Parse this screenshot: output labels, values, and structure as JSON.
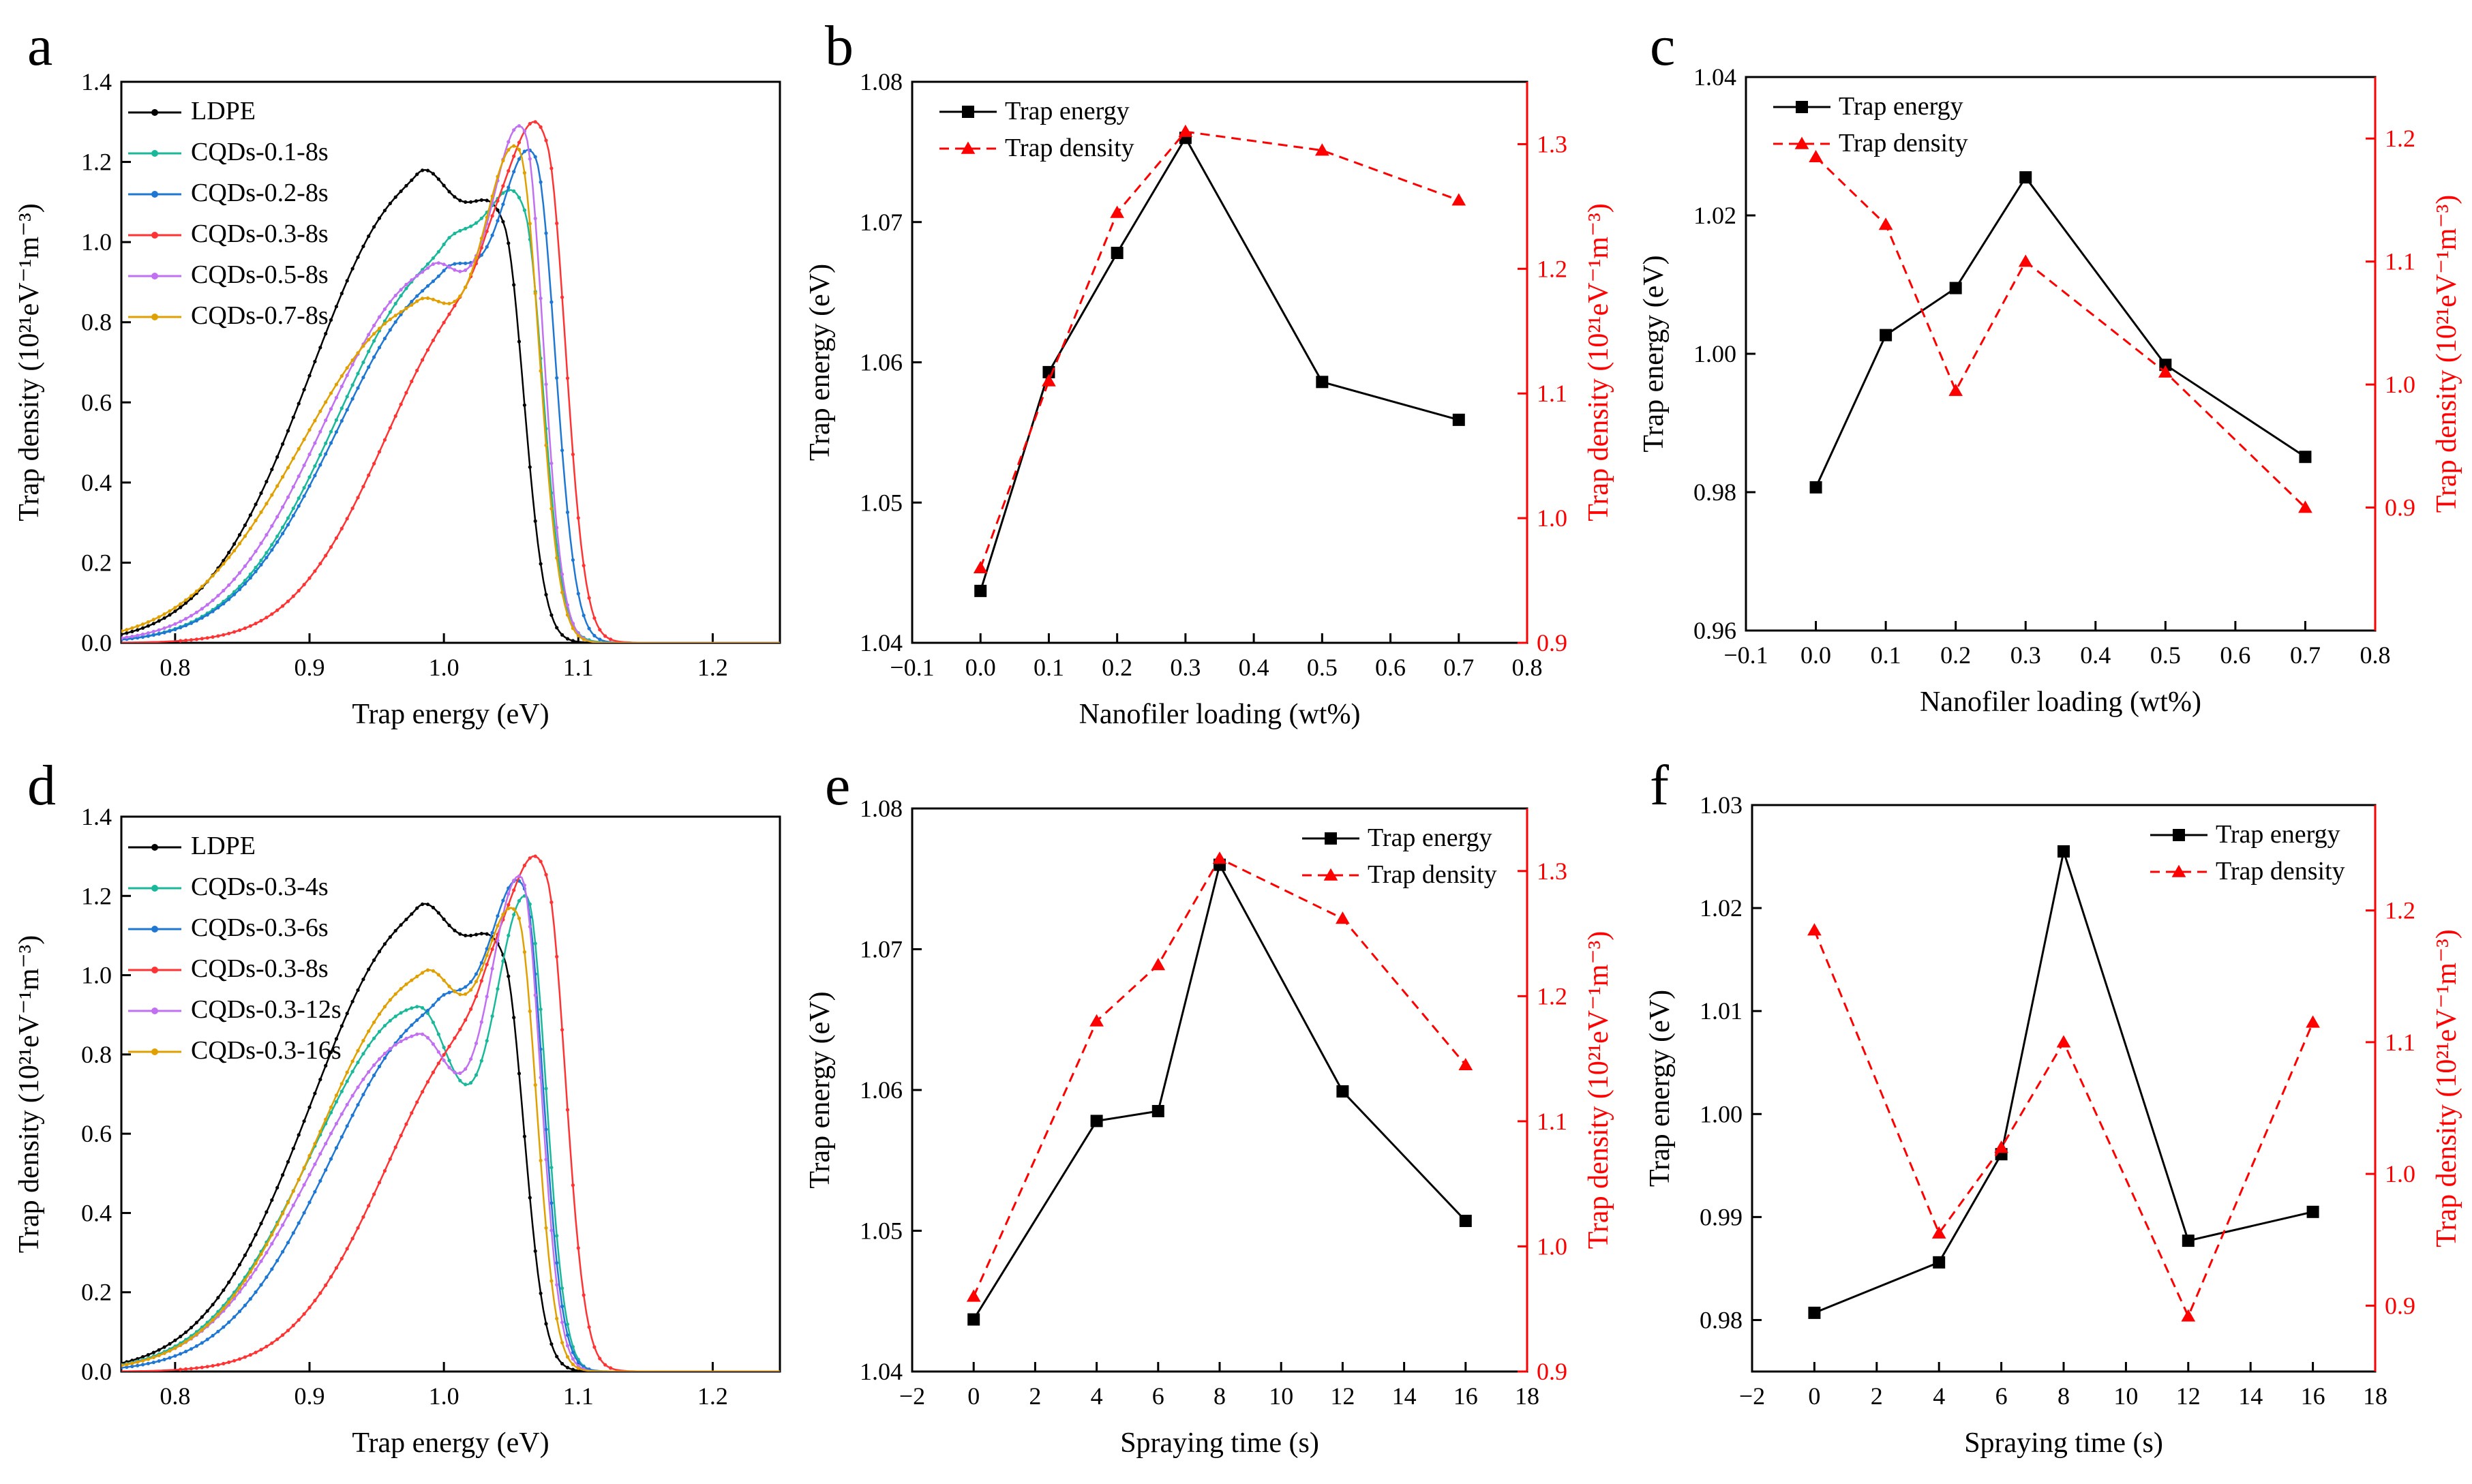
{
  "figure": {
    "panels": [
      "a",
      "b",
      "c",
      "d",
      "e",
      "f"
    ]
  },
  "colors": {
    "black": "#000000",
    "red": "#ff0000",
    "series_ldpe": "#000000",
    "series_teal": "#1ab89a",
    "series_blue": "#1f77d4",
    "series_red": "#ff3333",
    "series_violet": "#c070f0",
    "series_orange": "#e0a000"
  },
  "chart_data": [
    {
      "panel": "a",
      "type": "line",
      "xlabel": "Trap energy (eV)",
      "ylabel": "Trap density (10²¹eV⁻¹m⁻³)",
      "xlim": [
        0.76,
        1.25
      ],
      "ylim": [
        0,
        1.4
      ],
      "xticks": [
        "0.8",
        "0.9",
        "1.0",
        "1.1",
        "1.2"
      ],
      "yticks": [
        "0.0",
        "0.2",
        "0.4",
        "0.6",
        "0.8",
        "1.0",
        "1.2",
        "1.4"
      ],
      "legend": "top-left",
      "series": [
        {
          "name": "LDPE",
          "color": "series_ldpe",
          "peaks": [
            {
              "mu": 0.98,
              "h": 1.18,
              "s": 0.033
            },
            {
              "mu": 1.045,
              "h": 0.92,
              "s": 0.015
            }
          ],
          "tail": 0.045
        },
        {
          "name": "CQDs-0.1-8s",
          "color": "series_teal",
          "peaks": [
            {
              "mu": 1.0,
              "h": 1.13,
              "s": 0.033
            },
            {
              "mu": 1.06,
              "h": 1.08,
              "s": 0.014
            }
          ],
          "tail": 0.045
        },
        {
          "name": "CQDs-0.2-8s",
          "color": "series_blue",
          "peaks": [
            {
              "mu": 1.0,
              "h": 0.99,
              "s": 0.033
            },
            {
              "mu": 1.068,
              "h": 1.23,
              "s": 0.015
            }
          ],
          "tail": 0.045
        },
        {
          "name": "CQDs-0.3-8s",
          "color": "series_red",
          "peaks": [
            {
              "mu": 1.028,
              "h": 1.1,
              "s": 0.03
            },
            {
              "mu": 1.077,
              "h": 1.3,
              "s": 0.014
            }
          ],
          "tail": 0.04
        },
        {
          "name": "CQDs-0.5-8s",
          "color": "series_violet",
          "peaks": [
            {
              "mu": 0.99,
              "h": 1.0,
              "s": 0.033
            },
            {
              "mu": 1.06,
              "h": 1.29,
              "s": 0.014
            }
          ],
          "tail": 0.045
        },
        {
          "name": "CQDs-0.7-8s",
          "color": "series_orange",
          "peaks": [
            {
              "mu": 0.98,
              "h": 0.89,
              "s": 0.035
            },
            {
              "mu": 1.056,
              "h": 1.24,
              "s": 0.015
            }
          ],
          "tail": 0.05
        }
      ]
    },
    {
      "panel": "b",
      "type": "line",
      "xlabel": "Nanofiler loading (wt%)",
      "ylabel": "Trap energy (eV)",
      "ylabel_right": "Trap density (10²¹eV⁻¹m⁻³)",
      "xlim": [
        -0.1,
        0.8
      ],
      "ylim": [
        1.04,
        1.08
      ],
      "ylim_right": [
        0.9,
        1.35
      ],
      "xticks": [
        "−0.1",
        "0.0",
        "0.1",
        "0.2",
        "0.3",
        "0.4",
        "0.5",
        "0.6",
        "0.7",
        "0.8"
      ],
      "yticks": [
        "1.04",
        "1.05",
        "1.06",
        "1.07",
        "1.08"
      ],
      "yticks_right": [
        "0.9",
        "1.0",
        "1.1",
        "1.2",
        "1.3"
      ],
      "legend": "top-left",
      "x": [
        0.0,
        0.1,
        0.2,
        0.3,
        0.5,
        0.7
      ],
      "series": [
        {
          "name": "Trap energy",
          "axis": "left",
          "values": [
            1.0437,
            1.0593,
            1.0678,
            1.076,
            1.0586,
            1.0559
          ]
        },
        {
          "name": "Trap density",
          "axis": "right",
          "values": [
            0.96,
            1.11,
            1.245,
            1.31,
            1.295,
            1.255
          ]
        }
      ]
    },
    {
      "panel": "c",
      "type": "line",
      "xlabel": "Nanofiler loading (wt%)",
      "ylabel": "Trap energy (eV)",
      "ylabel_right": "Trap density (10²¹eV⁻¹m⁻³)",
      "xlim": [
        -0.1,
        0.8
      ],
      "ylim": [
        0.96,
        1.04
      ],
      "ylim_right": [
        0.8,
        1.25
      ],
      "xticks": [
        "−0.1",
        "0.0",
        "0.1",
        "0.2",
        "0.3",
        "0.4",
        "0.5",
        "0.6",
        "0.7",
        "0.8"
      ],
      "yticks": [
        "0.96",
        "0.98",
        "1.00",
        "1.02",
        "1.04"
      ],
      "yticks_right": [
        "0.9",
        "1.0",
        "1.1",
        "1.2"
      ],
      "legend": "top-left",
      "x": [
        0.0,
        0.1,
        0.2,
        0.3,
        0.5,
        0.7
      ],
      "series": [
        {
          "name": "Trap energy",
          "axis": "left",
          "values": [
            0.9807,
            1.0027,
            1.0095,
            1.0255,
            0.9984,
            0.9851
          ]
        },
        {
          "name": "Trap density",
          "axis": "right",
          "values": [
            1.185,
            1.13,
            0.995,
            1.1,
            1.01,
            0.9
          ]
        }
      ]
    },
    {
      "panel": "d",
      "type": "line",
      "xlabel": "Trap energy (eV)",
      "ylabel": "Trap density (10²¹eV⁻¹m⁻³)",
      "xlim": [
        0.76,
        1.25
      ],
      "ylim": [
        0,
        1.4
      ],
      "xticks": [
        "0.8",
        "0.9",
        "1.0",
        "1.1",
        "1.2"
      ],
      "yticks": [
        "0.0",
        "0.2",
        "0.4",
        "0.6",
        "0.8",
        "1.0",
        "1.2",
        "1.4"
      ],
      "legend": "top-left",
      "series": [
        {
          "name": "LDPE",
          "color": "series_ldpe",
          "peaks": [
            {
              "mu": 0.98,
              "h": 1.18,
              "s": 0.033
            },
            {
              "mu": 1.045,
              "h": 0.92,
              "s": 0.015
            }
          ],
          "tail": 0.045
        },
        {
          "name": "CQDs-0.3-4s",
          "color": "series_teal",
          "peaks": [
            {
              "mu": 0.98,
              "h": 0.95,
              "s": 0.033
            },
            {
              "mu": 1.062,
              "h": 1.2,
              "s": 0.014
            }
          ],
          "tail": 0.045
        },
        {
          "name": "CQDs-0.3-6s",
          "color": "series_blue",
          "peaks": [
            {
              "mu": 0.995,
              "h": 1.02,
              "s": 0.033
            },
            {
              "mu": 1.06,
              "h": 1.24,
              "s": 0.014
            }
          ],
          "tail": 0.045
        },
        {
          "name": "CQDs-0.3-8s",
          "color": "series_red",
          "peaks": [
            {
              "mu": 1.028,
              "h": 1.1,
              "s": 0.03
            },
            {
              "mu": 1.077,
              "h": 1.3,
              "s": 0.014
            }
          ],
          "tail": 0.04
        },
        {
          "name": "CQDs-0.3-12s",
          "color": "series_violet",
          "peaks": [
            {
              "mu": 0.98,
              "h": 0.88,
              "s": 0.033
            },
            {
              "mu": 1.058,
              "h": 1.25,
              "s": 0.014
            }
          ],
          "tail": 0.045
        },
        {
          "name": "CQDs-0.3-16s",
          "color": "series_orange",
          "peaks": [
            {
              "mu": 0.985,
              "h": 1.1,
              "s": 0.033
            },
            {
              "mu": 1.055,
              "h": 1.17,
              "s": 0.014
            }
          ],
          "tail": 0.045
        }
      ]
    },
    {
      "panel": "e",
      "type": "line",
      "xlabel": "Spraying time (s)",
      "ylabel": "Trap energy (eV)",
      "ylabel_right": "Trap density (10²¹eV⁻¹m⁻³)",
      "xlim": [
        -2,
        18
      ],
      "ylim": [
        1.04,
        1.08
      ],
      "ylim_right": [
        0.9,
        1.35
      ],
      "xticks": [
        "−2",
        "0",
        "2",
        "4",
        "6",
        "8",
        "10",
        "12",
        "14",
        "16",
        "18"
      ],
      "yticks": [
        "1.04",
        "1.05",
        "1.06",
        "1.07",
        "1.08"
      ],
      "yticks_right": [
        "0.9",
        "1.0",
        "1.1",
        "1.2",
        "1.3"
      ],
      "legend": "top-right",
      "x": [
        0,
        4,
        6,
        8,
        12,
        16
      ],
      "series": [
        {
          "name": "Trap energy",
          "axis": "left",
          "values": [
            1.0437,
            1.0578,
            1.0585,
            1.076,
            1.0599,
            1.0507
          ]
        },
        {
          "name": "Trap density",
          "axis": "right",
          "values": [
            0.96,
            1.18,
            1.225,
            1.31,
            1.262,
            1.145
          ]
        }
      ]
    },
    {
      "panel": "f",
      "type": "line",
      "xlabel": "Spraying time (s)",
      "ylabel": "Trap energy (eV)",
      "ylabel_right": "Trap density (10²¹eV⁻¹m⁻³)",
      "xlim": [
        -2,
        18
      ],
      "ylim": [
        0.975,
        1.03
      ],
      "ylim_right": [
        0.85,
        1.28
      ],
      "xticks": [
        "−2",
        "0",
        "2",
        "4",
        "6",
        "8",
        "10",
        "12",
        "14",
        "16",
        "18"
      ],
      "yticks": [
        "0.98",
        "0.99",
        "1.00",
        "1.01",
        "1.02",
        "1.03"
      ],
      "yticks_right": [
        "0.9",
        "1.0",
        "1.1",
        "1.2"
      ],
      "legend": "top-right",
      "x": [
        0,
        4,
        6,
        8,
        12,
        16
      ],
      "series": [
        {
          "name": "Trap energy",
          "axis": "left",
          "values": [
            0.9807,
            0.9856,
            0.9961,
            1.0255,
            0.9877,
            0.9905
          ]
        },
        {
          "name": "Trap density",
          "axis": "right",
          "values": [
            1.185,
            0.955,
            1.02,
            1.1,
            0.892,
            1.115
          ]
        }
      ]
    }
  ]
}
